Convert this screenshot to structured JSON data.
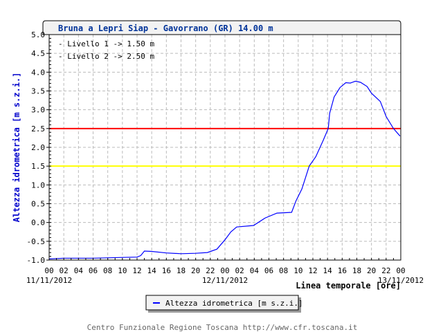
{
  "chart_data": {
    "type": "line",
    "title": "Bruna a Lepri Siap - Gavorrano (GR) 14.00 m",
    "annotations": [
      "- Livello 1 -> 1.50 m",
      "- Livello 2 -> 2.50 m"
    ],
    "xlabel": "Linea temporale [ore]",
    "ylabel": "Altezza idrometrica [m s.z.i.]",
    "xlim_hours": [
      0,
      48
    ],
    "ylim": [
      -1.0,
      5.0
    ],
    "yticks": [
      "5.0",
      "4.5",
      "4.0",
      "3.5",
      "3.0",
      "2.5",
      "2.0",
      "1.5",
      "1.0",
      "0.5",
      "0.0",
      "-0.5",
      "-1.0"
    ],
    "xticks": [
      "00",
      "02",
      "04",
      "06",
      "08",
      "10",
      "12",
      "14",
      "16",
      "18",
      "20",
      "22",
      "00",
      "02",
      "04",
      "06",
      "08",
      "10",
      "12",
      "14",
      "16",
      "18",
      "20",
      "22",
      "00"
    ],
    "date_labels": [
      "11/11/2012",
      "12/11/2012",
      "13/11/2012"
    ],
    "grid": true,
    "thresholds": [
      {
        "value": 1.5,
        "color": "#ffff00"
      },
      {
        "value": 2.5,
        "color": "#ff0000"
      }
    ],
    "series": [
      {
        "name": "Altezza idrometrica [m s.z.i.]",
        "color": "#0000ff",
        "x_hours": [
          0,
          2,
          6,
          10,
          12,
          12.5,
          13,
          14,
          16,
          18,
          20,
          21.6,
          22.9,
          24,
          24.8,
          25.6,
          27.9,
          29.5,
          31.1,
          33.1,
          33.7,
          34.5,
          35.5,
          36.4,
          37.4,
          38.1,
          38.3,
          38.9,
          39.7,
          40.5,
          41.1,
          41.8,
          42.5,
          43.4,
          44,
          45.2,
          46,
          47,
          47.9
        ],
        "values": [
          -0.97,
          -0.95,
          -0.95,
          -0.93,
          -0.92,
          -0.88,
          -0.76,
          -0.77,
          -0.81,
          -0.83,
          -0.82,
          -0.8,
          -0.71,
          -0.46,
          -0.25,
          -0.12,
          -0.08,
          0.12,
          0.25,
          0.27,
          0.58,
          0.89,
          1.5,
          1.75,
          2.18,
          2.5,
          2.91,
          3.34,
          3.59,
          3.72,
          3.71,
          3.76,
          3.73,
          3.62,
          3.44,
          3.22,
          2.82,
          2.5,
          2.3
        ]
      }
    ],
    "legend": {
      "placement": "bottom-center",
      "label": "Altezza idrometrica [m s.z.i.]"
    }
  },
  "footer": "Centro Funzionale Regione Toscana http://www.cfr.toscana.it"
}
